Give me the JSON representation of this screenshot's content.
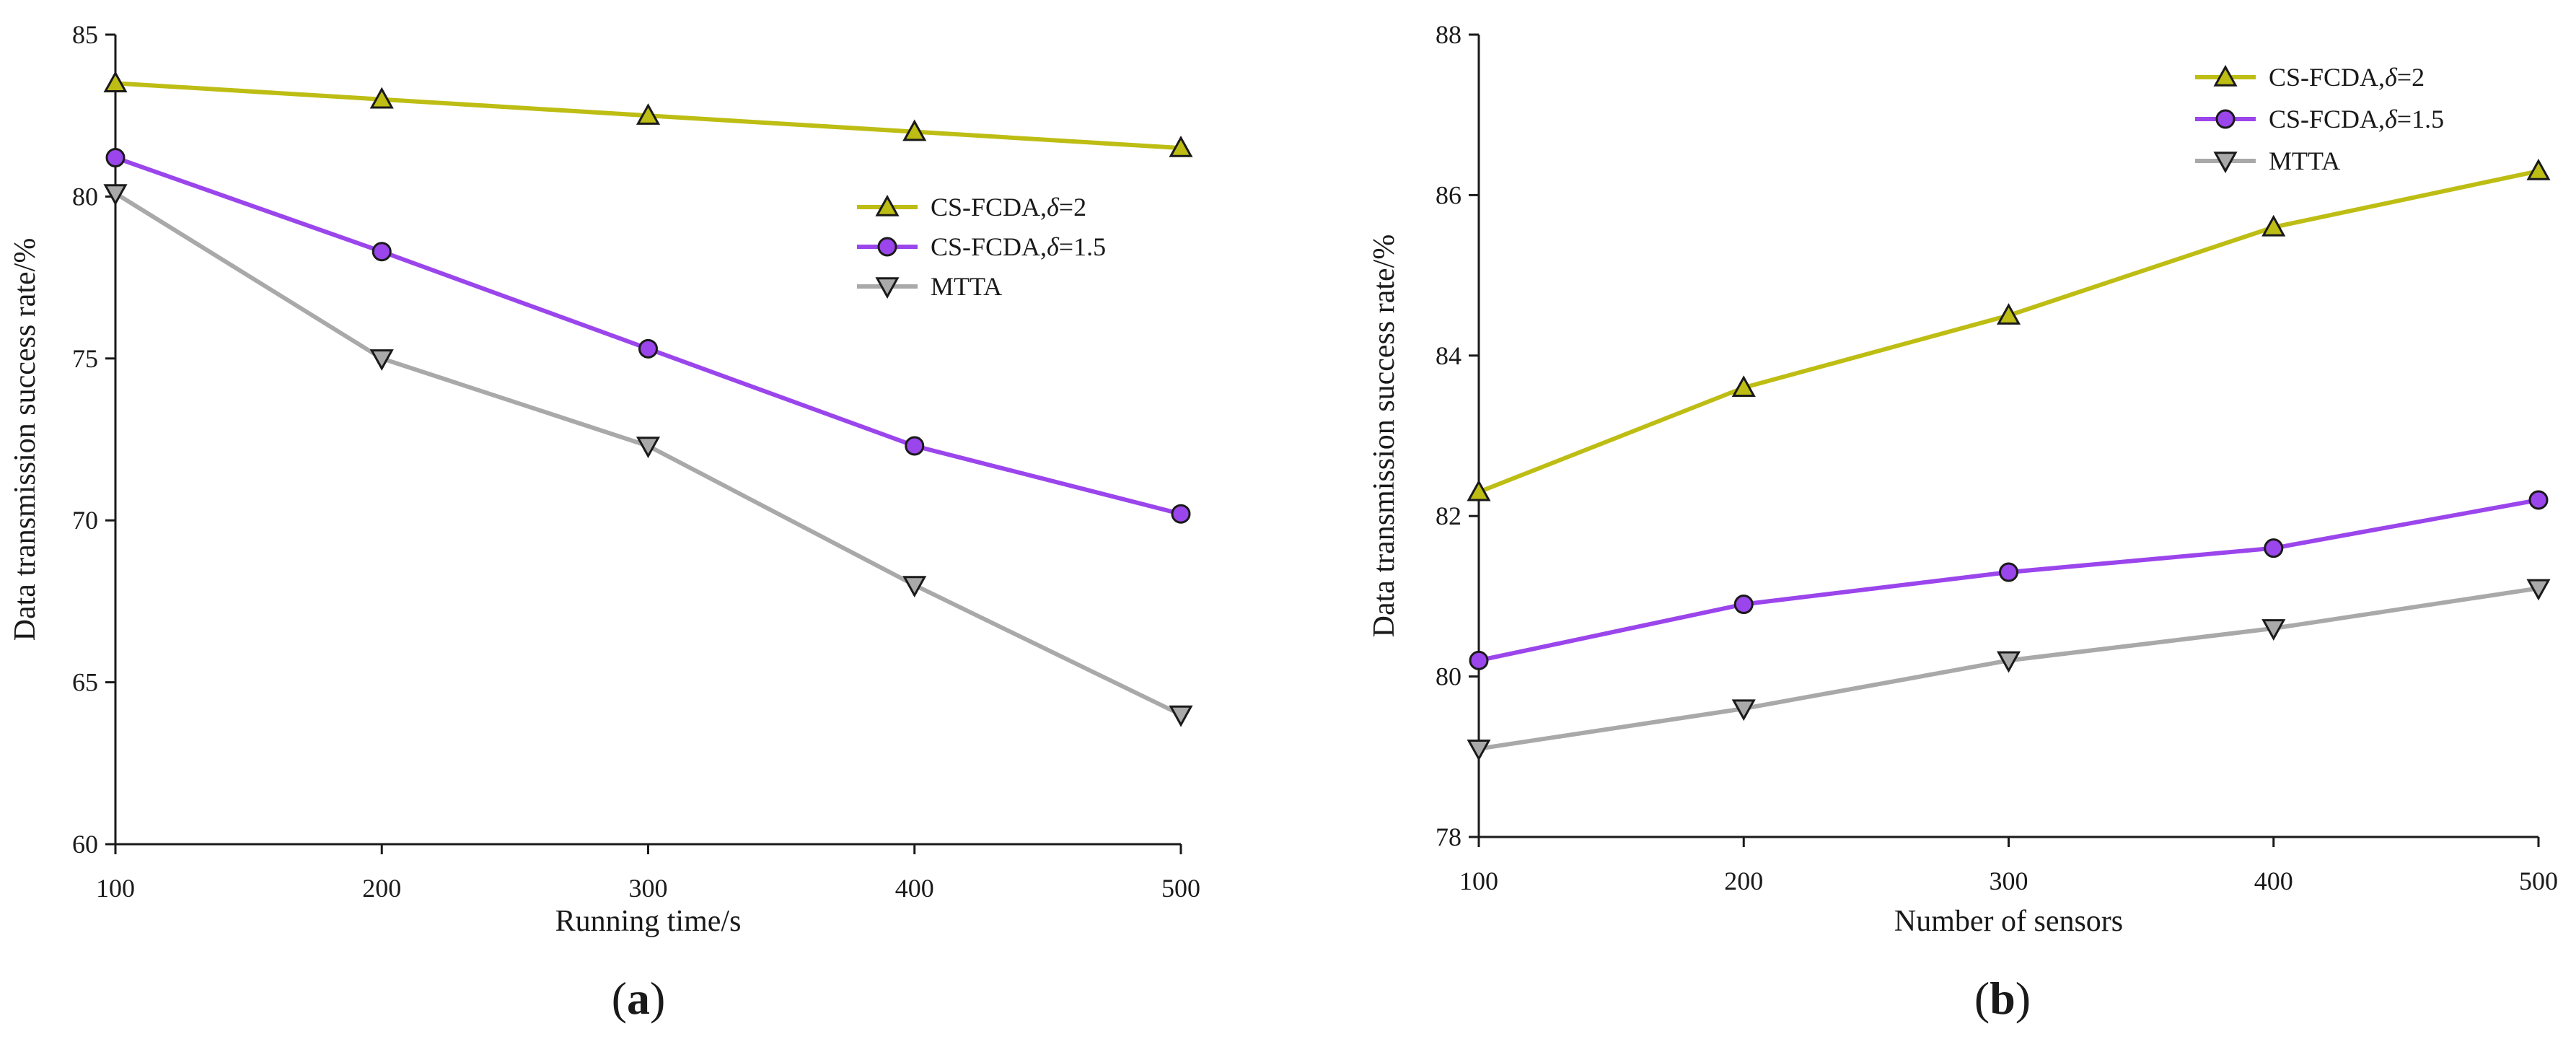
{
  "figure": {
    "panels": [
      {
        "caption_open": "(",
        "caption_letter": "a",
        "caption_close": ")"
      },
      {
        "caption_open": "(",
        "caption_letter": "b",
        "caption_close": ")"
      }
    ]
  },
  "chart_data": [
    {
      "type": "line",
      "title": "",
      "xlabel": "Running time/s",
      "ylabel": "Data transmission success rate/%",
      "x": [
        100,
        200,
        300,
        400,
        500
      ],
      "xticks": [
        "100",
        "200",
        "300",
        "400",
        "500"
      ],
      "xlim": [
        100,
        500
      ],
      "ylim": [
        60,
        85
      ],
      "yticks": [
        60,
        65,
        70,
        75,
        80,
        85
      ],
      "ytick_labels": [
        "60",
        "65",
        "70",
        "75",
        "80",
        "85"
      ],
      "grid": false,
      "legend_position": "center-right",
      "series": [
        {
          "name_prefix": "CS-FCDA,",
          "name_symbol": "δ",
          "name_suffix": "=2",
          "marker": "triangle-up",
          "color": "#bdbd14",
          "values": [
            83.5,
            83.0,
            82.5,
            82.0,
            81.5
          ]
        },
        {
          "name_prefix": "CS-FCDA,",
          "name_symbol": "δ",
          "name_suffix": "=1.5",
          "marker": "circle",
          "color": "#9b45ec",
          "values": [
            81.2,
            78.3,
            75.3,
            72.3,
            70.2
          ]
        },
        {
          "name_prefix": "MTTA",
          "name_symbol": "",
          "name_suffix": "",
          "marker": "triangle-down",
          "color": "#a9a9a9",
          "values": [
            80.1,
            75.0,
            72.3,
            68.0,
            64.0
          ]
        }
      ]
    },
    {
      "type": "line",
      "title": "",
      "xlabel": "Number of sensors",
      "ylabel": "Data transmission success rate/%",
      "x": [
        100,
        200,
        300,
        400,
        500
      ],
      "xticks": [
        "100",
        "200",
        "300",
        "400",
        "500"
      ],
      "xlim": [
        100,
        500
      ],
      "ylim": [
        78,
        88
      ],
      "yticks": [
        78,
        80,
        82,
        84,
        86,
        88
      ],
      "ytick_labels": [
        "78",
        "80",
        "82",
        "84",
        "86",
        "88"
      ],
      "grid": false,
      "legend_position": "top-right",
      "series": [
        {
          "name_prefix": "CS-FCDA,",
          "name_symbol": "δ",
          "name_suffix": "=2",
          "marker": "triangle-up",
          "color": "#bdbd14",
          "values": [
            82.3,
            83.6,
            84.5,
            85.6,
            86.3
          ]
        },
        {
          "name_prefix": "CS-FCDA,",
          "name_symbol": "δ",
          "name_suffix": "=1.5",
          "marker": "circle",
          "color": "#9b45ec",
          "values": [
            80.2,
            80.9,
            81.3,
            81.6,
            82.2
          ]
        },
        {
          "name_prefix": "MTTA",
          "name_symbol": "",
          "name_suffix": "",
          "marker": "triangle-down",
          "color": "#a9a9a9",
          "values": [
            79.1,
            79.6,
            80.2,
            80.6,
            81.1
          ]
        }
      ]
    }
  ]
}
